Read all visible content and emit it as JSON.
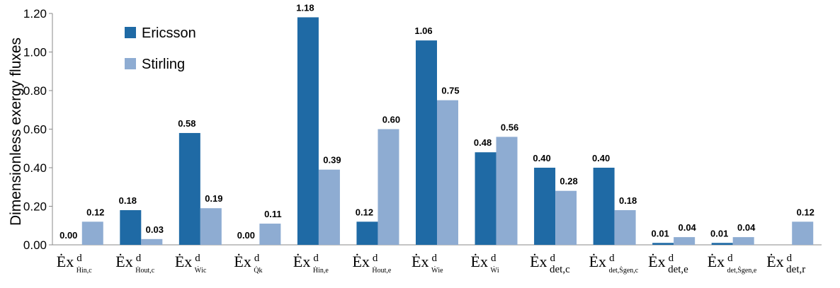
{
  "chart_data": {
    "type": "bar",
    "title": "",
    "xlabel": "",
    "ylabel": "Dimensionless exergy fluxes",
    "ylim": [
      0,
      1.2
    ],
    "yticks": [
      "0.00",
      "0.20",
      "0.40",
      "0.60",
      "0.80",
      "1.00",
      "1.20"
    ],
    "grid": false,
    "legend_position": "top-left",
    "categories": [
      {
        "main": "Ėx",
        "sup": "d",
        "sub": "Ḣin,c"
      },
      {
        "main": "Ėx",
        "sup": "d",
        "sub": "Ḣout,c"
      },
      {
        "main": "Ėx",
        "sup": "d",
        "sub": "Ẇic"
      },
      {
        "main": "Ėx",
        "sup": "d",
        "sub": "Q̇k"
      },
      {
        "main": "Ėx",
        "sup": "d",
        "sub": "Ḣin,e"
      },
      {
        "main": "Ėx",
        "sup": "d",
        "sub": "Ḣout,e"
      },
      {
        "main": "Ėx",
        "sup": "d",
        "sub": "Ẇie"
      },
      {
        "main": "Ėx",
        "sup": "d",
        "sub": "Ẇi"
      },
      {
        "main": "Ėx",
        "sup": "d",
        "sub": "det,c"
      },
      {
        "main": "Ėx",
        "sup": "d",
        "sub": "det,Ṡgen,c"
      },
      {
        "main": "Ėx",
        "sup": "d",
        "sub": "det,e"
      },
      {
        "main": "Ėx",
        "sup": "d",
        "sub": "det,Ṡgen,e"
      },
      {
        "main": "Ėx",
        "sup": "d",
        "sub": "det,r"
      }
    ],
    "series": [
      {
        "name": "Ericsson",
        "color": "#1f6aa5",
        "values": [
          0.0,
          0.18,
          0.58,
          0.0,
          1.18,
          0.12,
          1.06,
          0.48,
          0.4,
          0.4,
          0.01,
          0.01,
          null
        ],
        "labels": [
          "0.00",
          "0.18",
          "0.58",
          "0.00",
          "1.18",
          "0.12",
          "1.06",
          "0.48",
          "0.40",
          "0.40",
          "0.01",
          "0.01",
          ""
        ]
      },
      {
        "name": "Stirling",
        "color": "#8eacd2",
        "values": [
          0.12,
          0.03,
          0.19,
          0.11,
          0.39,
          0.6,
          0.75,
          0.56,
          0.28,
          0.18,
          0.04,
          0.04,
          0.12
        ],
        "labels": [
          "0.12",
          "0.03",
          "0.19",
          "0.11",
          "0.39",
          "0.60",
          "0.75",
          "0.56",
          "0.28",
          "0.18",
          "0.04",
          "0.04",
          "0.12"
        ]
      }
    ]
  }
}
